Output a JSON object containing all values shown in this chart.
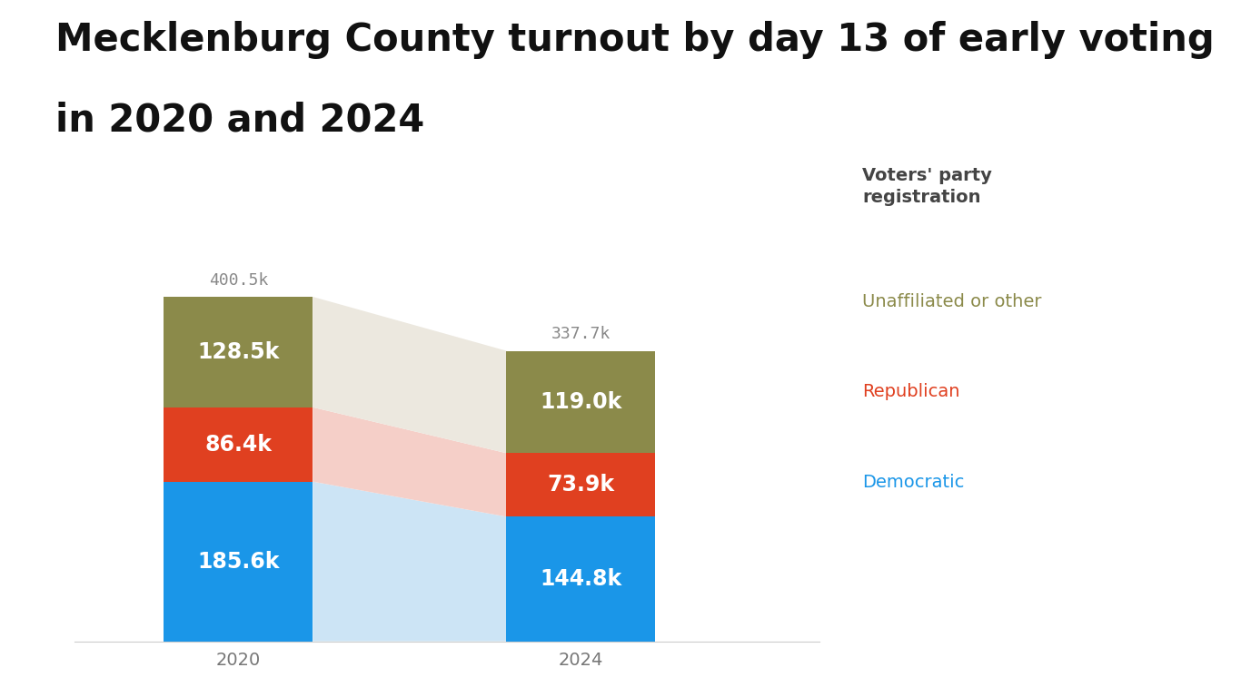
{
  "title_line1": "Mecklenburg County turnout by day 13 of early voting",
  "title_line2": "in 2020 and 2024",
  "years": [
    "2020",
    "2024"
  ],
  "democratic": [
    185.6,
    144.8
  ],
  "republican": [
    86.4,
    73.9
  ],
  "unaffiliated": [
    128.5,
    119.0
  ],
  "totals_labels": [
    "400.5k",
    "337.7k"
  ],
  "colors": {
    "democratic": "#1a96e8",
    "republican": "#e04020",
    "unaffiliated": "#8b8a4a",
    "democratic_fade": "#cce4f5",
    "republican_fade": "#f5cfc8",
    "unaffiliated_fade": "#ece8df"
  },
  "legend_title": "Voters' party\nregistration",
  "legend_items": [
    {
      "label": "Unaffiliated or other",
      "color_key": "unaffiliated"
    },
    {
      "label": "Republican",
      "color_key": "republican"
    },
    {
      "label": "Democratic",
      "color_key": "democratic"
    }
  ],
  "background_color": "#ffffff",
  "x_2020": 0.12,
  "x_2024": 0.58,
  "bar_width": 0.2,
  "xlim": [
    0.0,
    1.0
  ],
  "ylim": [
    0,
    470
  ],
  "title_fontsize": 30,
  "label_fontsize": 17,
  "total_fontsize": 13,
  "xtick_fontsize": 14,
  "legend_title_fontsize": 14,
  "legend_item_fontsize": 14
}
